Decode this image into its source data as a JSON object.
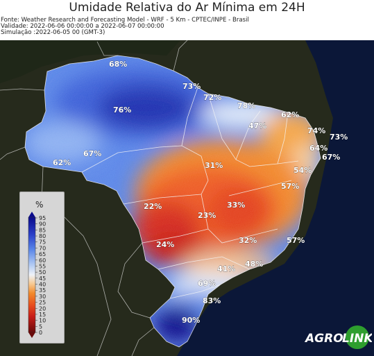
{
  "header": {
    "title": "Umidade Relativa do Ar Mínima em 24H",
    "source": "Fonte: Weather Research and Forecasting Model - WRF - 5 Km - CPTEC/INPE - Brasil",
    "validity": "Validade: 2022-06-06 00:00:00 a 2022-06-07 00:00:00",
    "simulation": "Simulação :2022-06-05 00 (GMT-3)"
  },
  "legend": {
    "unit": "%",
    "ticks": [
      "95",
      "90",
      "85",
      "80",
      "75",
      "70",
      "65",
      "60",
      "55",
      "50",
      "45",
      "40",
      "35",
      "30",
      "25",
      "20",
      "15",
      "10",
      "5",
      "0"
    ],
    "colors": {
      "very_humid": "#0a0a8c",
      "humid": "#4f7ff0",
      "moderate": "#dce8f8",
      "dry": "#f28a2c",
      "very_dry": "#c81e18",
      "extreme_dry": "#6a0a0a",
      "ocean": "#0b1738",
      "land": "#262a1c"
    }
  },
  "map_labels": [
    {
      "id": "n-68",
      "text": "68%"
    },
    {
      "id": "ne-73",
      "text": "73%"
    },
    {
      "id": "n-76",
      "text": "76%"
    },
    {
      "id": "ne-72",
      "text": "72%"
    },
    {
      "id": "ne-78",
      "text": "78%"
    },
    {
      "id": "ne-62",
      "text": "62%"
    },
    {
      "id": "ne-47",
      "text": "47%"
    },
    {
      "id": "ne-74",
      "text": "74%"
    },
    {
      "id": "coast-73",
      "text": "73%"
    },
    {
      "id": "ne-64",
      "text": "64%"
    },
    {
      "id": "coast-67",
      "text": "67%"
    },
    {
      "id": "w-67",
      "text": "67%"
    },
    {
      "id": "w-62",
      "text": "62%"
    },
    {
      "id": "c-31",
      "text": "31%"
    },
    {
      "id": "ne-54",
      "text": "54%"
    },
    {
      "id": "e-57",
      "text": "57%"
    },
    {
      "id": "cw-22",
      "text": "22%"
    },
    {
      "id": "c-33",
      "text": "33%"
    },
    {
      "id": "c-23",
      "text": "23%"
    },
    {
      "id": "sw-24",
      "text": "24%"
    },
    {
      "id": "se-32",
      "text": "32%"
    },
    {
      "id": "coast-57",
      "text": "57%"
    },
    {
      "id": "se-48",
      "text": "48%"
    },
    {
      "id": "se-41",
      "text": "41%"
    },
    {
      "id": "s-69",
      "text": "69%"
    },
    {
      "id": "s-83",
      "text": "83%"
    },
    {
      "id": "s-90",
      "text": "90%"
    }
  ],
  "brand": {
    "left": "AGRO",
    "right": "LINK"
  }
}
